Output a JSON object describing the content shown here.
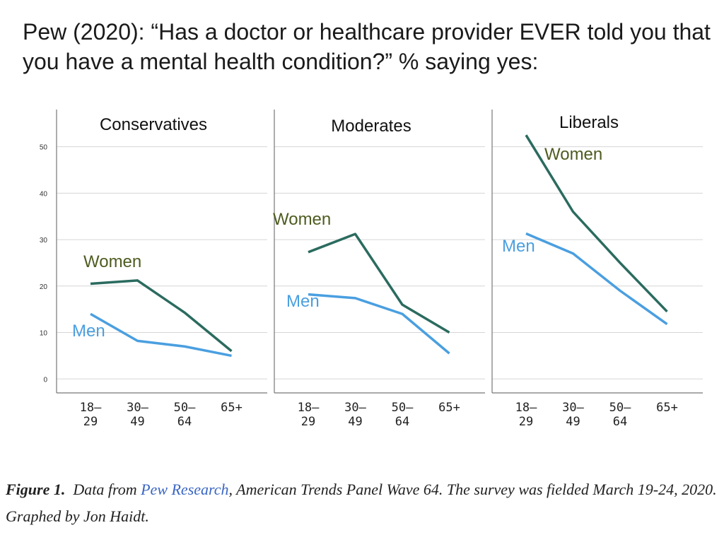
{
  "title": "Pew (2020): “Has a doctor or healthcare provider EVER told you that you have a mental health condition?” % saying yes:",
  "chart_data": [
    {
      "type": "line",
      "title": "Conservatives",
      "categories": [
        "18–29",
        "30–49",
        "50–64",
        "65+"
      ],
      "series": [
        {
          "name": "Women",
          "color": "#2b6b5f",
          "label_color": "#4e5c20",
          "values": [
            20.5,
            21.2,
            14.3,
            6
          ]
        },
        {
          "name": "Men",
          "color": "#4a9fe0",
          "label_color": "#4a9fe0",
          "values": [
            14,
            8.2,
            7,
            5
          ]
        }
      ],
      "ylim": [
        -3,
        58
      ],
      "yticks": [
        0,
        10,
        20,
        30,
        40,
        50
      ],
      "grid": true
    },
    {
      "type": "line",
      "title": "Moderates",
      "categories": [
        "18–29",
        "30–49",
        "50–64",
        "65+"
      ],
      "series": [
        {
          "name": "Women",
          "color": "#2b6b5f",
          "label_color": "#4e5c20",
          "values": [
            27.3,
            31.2,
            16,
            10
          ]
        },
        {
          "name": "Men",
          "color": "#4a9fe0",
          "label_color": "#4a9fe0",
          "values": [
            18.2,
            17.4,
            14,
            5.5
          ]
        }
      ],
      "ylim": [
        -3,
        58
      ],
      "yticks": [
        0,
        10,
        20,
        30,
        40,
        50
      ],
      "grid": true
    },
    {
      "type": "line",
      "title": "Liberals",
      "categories": [
        "18–29",
        "30–49",
        "50–64",
        "65+"
      ],
      "series": [
        {
          "name": "Women",
          "color": "#2b6b5f",
          "label_color": "#4e5c20",
          "values": [
            52.5,
            36,
            25,
            14.5
          ]
        },
        {
          "name": "Men",
          "color": "#4a9fe0",
          "label_color": "#4a9fe0",
          "values": [
            31.3,
            27,
            19,
            11.8
          ]
        }
      ],
      "ylim": [
        -3,
        58
      ],
      "yticks": [
        0,
        10,
        20,
        30,
        40,
        50
      ],
      "grid": true
    }
  ],
  "caption": {
    "label": "Figure 1.",
    "before": "Data from ",
    "link": "Pew Research",
    "after": ", American Trends Panel Wave 64. The survey was fielded March 19-24, 2020. Graphed by Jon Haidt."
  }
}
